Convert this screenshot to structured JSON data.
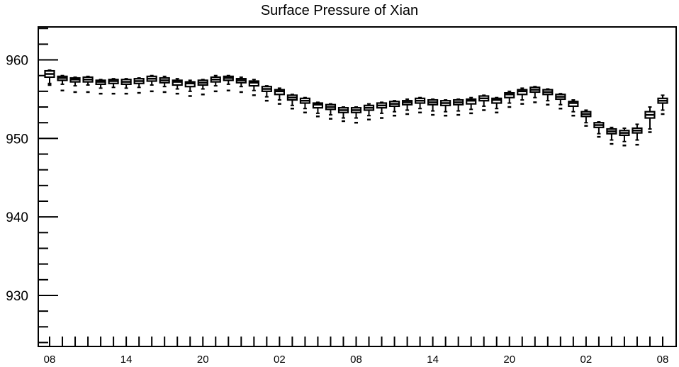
{
  "chart_data": {
    "type": "box",
    "title": "Surface Pressure of Xian",
    "xlabel": "",
    "ylabel": "",
    "ylim": [
      923.5,
      964.2
    ],
    "y_ticks": [
      930,
      940,
      950,
      960
    ],
    "x_tick_labels": [
      "08",
      "14",
      "20",
      "02",
      "08",
      "14",
      "20",
      "02",
      "08"
    ],
    "x_tick_positions": [
      0,
      6,
      12,
      18,
      24,
      30,
      36,
      42,
      48
    ],
    "grid": false,
    "series": [
      {
        "name": "",
        "boxes": [
          {
            "x": 0,
            "median": 958.2,
            "q1": 957.8,
            "q3": 958.6,
            "whisker_low": 957.0,
            "whisker_high": 958.7,
            "outlier": 956.8
          },
          {
            "x": 1,
            "median": 957.7,
            "q1": 957.4,
            "q3": 957.9,
            "whisker_low": 956.9,
            "whisker_high": 958.0,
            "outlier": 956.1
          },
          {
            "x": 2,
            "median": 957.5,
            "q1": 957.2,
            "q3": 957.7,
            "whisker_low": 956.7,
            "whisker_high": 957.8,
            "outlier": 955.9
          },
          {
            "x": 3,
            "median": 957.5,
            "q1": 957.2,
            "q3": 957.8,
            "whisker_low": 956.8,
            "whisker_high": 957.9,
            "outlier": 955.9
          },
          {
            "x": 4,
            "median": 957.2,
            "q1": 956.9,
            "q3": 957.4,
            "whisker_low": 956.4,
            "whisker_high": 957.5,
            "outlier": 955.7
          },
          {
            "x": 5,
            "median": 957.3,
            "q1": 957.0,
            "q3": 957.5,
            "whisker_low": 956.5,
            "whisker_high": 957.6,
            "outlier": 955.7
          },
          {
            "x": 6,
            "median": 957.2,
            "q1": 956.9,
            "q3": 957.5,
            "whisker_low": 956.4,
            "whisker_high": 957.6,
            "outlier": 955.7
          },
          {
            "x": 7,
            "median": 957.3,
            "q1": 957.0,
            "q3": 957.6,
            "whisker_low": 956.5,
            "whisker_high": 957.7,
            "outlier": 955.8
          },
          {
            "x": 8,
            "median": 957.6,
            "q1": 957.3,
            "q3": 957.9,
            "whisker_low": 956.8,
            "whisker_high": 958.0,
            "outlier": 956.0
          },
          {
            "x": 9,
            "median": 957.4,
            "q1": 957.1,
            "q3": 957.7,
            "whisker_low": 956.6,
            "whisker_high": 957.9,
            "outlier": 955.9
          },
          {
            "x": 10,
            "median": 957.2,
            "q1": 956.8,
            "q3": 957.4,
            "whisker_low": 956.3,
            "whisker_high": 957.6,
            "outlier": 955.7
          },
          {
            "x": 11,
            "median": 957.0,
            "q1": 956.6,
            "q3": 957.2,
            "whisker_low": 956.0,
            "whisker_high": 957.4,
            "outlier": 955.4
          },
          {
            "x": 12,
            "median": 957.1,
            "q1": 956.8,
            "q3": 957.4,
            "whisker_low": 956.3,
            "whisker_high": 957.5,
            "outlier": 955.6
          },
          {
            "x": 13,
            "median": 957.5,
            "q1": 957.2,
            "q3": 957.8,
            "whisker_low": 956.7,
            "whisker_high": 958.0,
            "outlier": 956.0
          },
          {
            "x": 14,
            "median": 957.7,
            "q1": 957.4,
            "q3": 957.9,
            "whisker_low": 956.9,
            "whisker_high": 958.0,
            "outlier": 956.1
          },
          {
            "x": 15,
            "median": 957.4,
            "q1": 957.1,
            "q3": 957.6,
            "whisker_low": 956.6,
            "whisker_high": 957.8,
            "outlier": 955.9
          },
          {
            "x": 16,
            "median": 957.1,
            "q1": 956.7,
            "q3": 957.3,
            "whisker_low": 956.1,
            "whisker_high": 957.5,
            "outlier": 955.5
          },
          {
            "x": 17,
            "median": 956.3,
            "q1": 956.0,
            "q3": 956.6,
            "whisker_low": 955.3,
            "whisker_high": 956.7,
            "outlier": 954.8
          },
          {
            "x": 18,
            "median": 956.0,
            "q1": 955.6,
            "q3": 956.2,
            "whisker_low": 954.9,
            "whisker_high": 956.4,
            "outlier": 954.4
          },
          {
            "x": 19,
            "median": 955.2,
            "q1": 954.9,
            "q3": 955.5,
            "whisker_low": 954.2,
            "whisker_high": 955.6,
            "outlier": 953.8
          },
          {
            "x": 20,
            "median": 954.8,
            "q1": 954.5,
            "q3": 955.1,
            "whisker_low": 953.8,
            "whisker_high": 955.2,
            "outlier": 953.3
          },
          {
            "x": 21,
            "median": 954.3,
            "q1": 953.9,
            "q3": 954.5,
            "whisker_low": 953.2,
            "whisker_high": 954.6,
            "outlier": 952.8
          },
          {
            "x": 22,
            "median": 954.0,
            "q1": 953.7,
            "q3": 954.3,
            "whisker_low": 953.0,
            "whisker_high": 954.4,
            "outlier": 952.5
          },
          {
            "x": 23,
            "median": 953.6,
            "q1": 953.3,
            "q3": 953.9,
            "whisker_low": 952.6,
            "whisker_high": 954.0,
            "outlier": 952.2
          },
          {
            "x": 24,
            "median": 953.6,
            "q1": 953.3,
            "q3": 953.9,
            "whisker_low": 952.6,
            "whisker_high": 954.0,
            "outlier": 952.0
          },
          {
            "x": 25,
            "median": 953.9,
            "q1": 953.6,
            "q3": 954.2,
            "whisker_low": 952.9,
            "whisker_high": 954.4,
            "outlier": 952.4
          },
          {
            "x": 26,
            "median": 954.2,
            "q1": 953.9,
            "q3": 954.5,
            "whisker_low": 953.2,
            "whisker_high": 954.6,
            "outlier": 952.6
          },
          {
            "x": 27,
            "median": 954.4,
            "q1": 954.1,
            "q3": 954.7,
            "whisker_low": 953.4,
            "whisker_high": 954.8,
            "outlier": 952.9
          },
          {
            "x": 28,
            "median": 954.6,
            "q1": 954.3,
            "q3": 954.8,
            "whisker_low": 953.6,
            "whisker_high": 955.0,
            "outlier": 953.1
          },
          {
            "x": 29,
            "median": 954.8,
            "q1": 954.5,
            "q3": 955.1,
            "whisker_low": 953.8,
            "whisker_high": 955.2,
            "outlier": 953.3
          },
          {
            "x": 30,
            "median": 954.6,
            "q1": 954.3,
            "q3": 954.9,
            "whisker_low": 953.5,
            "whisker_high": 955.0,
            "outlier": 953.0
          },
          {
            "x": 31,
            "median": 954.5,
            "q1": 954.2,
            "q3": 954.8,
            "whisker_low": 953.4,
            "whisker_high": 954.9,
            "outlier": 952.9
          },
          {
            "x": 32,
            "median": 954.6,
            "q1": 954.3,
            "q3": 954.9,
            "whisker_low": 953.5,
            "whisker_high": 955.0,
            "outlier": 953.0
          },
          {
            "x": 33,
            "median": 954.8,
            "q1": 954.4,
            "q3": 955.0,
            "whisker_low": 953.7,
            "whisker_high": 955.2,
            "outlier": 953.2
          },
          {
            "x": 34,
            "median": 955.1,
            "q1": 954.8,
            "q3": 955.4,
            "whisker_low": 954.1,
            "whisker_high": 955.5,
            "outlier": 953.6
          },
          {
            "x": 35,
            "median": 954.9,
            "q1": 954.5,
            "q3": 955.1,
            "whisker_low": 953.8,
            "whisker_high": 955.2,
            "outlier": 953.3
          },
          {
            "x": 36,
            "median": 955.6,
            "q1": 955.2,
            "q3": 955.8,
            "whisker_low": 954.5,
            "whisker_high": 956.0,
            "outlier": 954.0
          },
          {
            "x": 37,
            "median": 956.0,
            "q1": 955.6,
            "q3": 956.2,
            "whisker_low": 954.9,
            "whisker_high": 956.4,
            "outlier": 954.4
          },
          {
            "x": 38,
            "median": 956.2,
            "q1": 955.9,
            "q3": 956.5,
            "whisker_low": 955.2,
            "whisker_high": 956.6,
            "outlier": 954.6
          },
          {
            "x": 39,
            "median": 955.9,
            "q1": 955.6,
            "q3": 956.2,
            "whisker_low": 954.8,
            "whisker_high": 956.3,
            "outlier": 954.3
          },
          {
            "x": 40,
            "median": 955.3,
            "q1": 955.0,
            "q3": 955.6,
            "whisker_low": 954.3,
            "whisker_high": 955.7,
            "outlier": 953.8
          },
          {
            "x": 41,
            "median": 954.5,
            "q1": 954.1,
            "q3": 954.7,
            "whisker_low": 953.4,
            "whisker_high": 954.9,
            "outlier": 952.9
          },
          {
            "x": 42,
            "median": 953.1,
            "q1": 952.8,
            "q3": 953.4,
            "whisker_low": 952.0,
            "whisker_high": 953.6,
            "outlier": 951.6
          },
          {
            "x": 43,
            "median": 951.7,
            "q1": 951.4,
            "q3": 952.0,
            "whisker_low": 950.6,
            "whisker_high": 952.1,
            "outlier": 950.2
          },
          {
            "x": 44,
            "median": 950.9,
            "q1": 950.6,
            "q3": 951.2,
            "whisker_low": 949.8,
            "whisker_high": 951.4,
            "outlier": 949.3
          },
          {
            "x": 45,
            "median": 950.7,
            "q1": 950.4,
            "q3": 951.0,
            "whisker_low": 949.6,
            "whisker_high": 951.3,
            "outlier": 949.1
          },
          {
            "x": 46,
            "median": 951.0,
            "q1": 950.7,
            "q3": 951.3,
            "whisker_low": 949.8,
            "whisker_high": 951.8,
            "outlier": 949.2
          },
          {
            "x": 47,
            "median": 953.0,
            "q1": 952.6,
            "q3": 953.4,
            "whisker_low": 951.2,
            "whisker_high": 954.0,
            "outlier": 950.8
          },
          {
            "x": 48,
            "median": 954.8,
            "q1": 954.5,
            "q3": 955.1,
            "whisker_low": 953.6,
            "whisker_high": 955.5,
            "outlier": 953.1
          }
        ]
      }
    ]
  }
}
